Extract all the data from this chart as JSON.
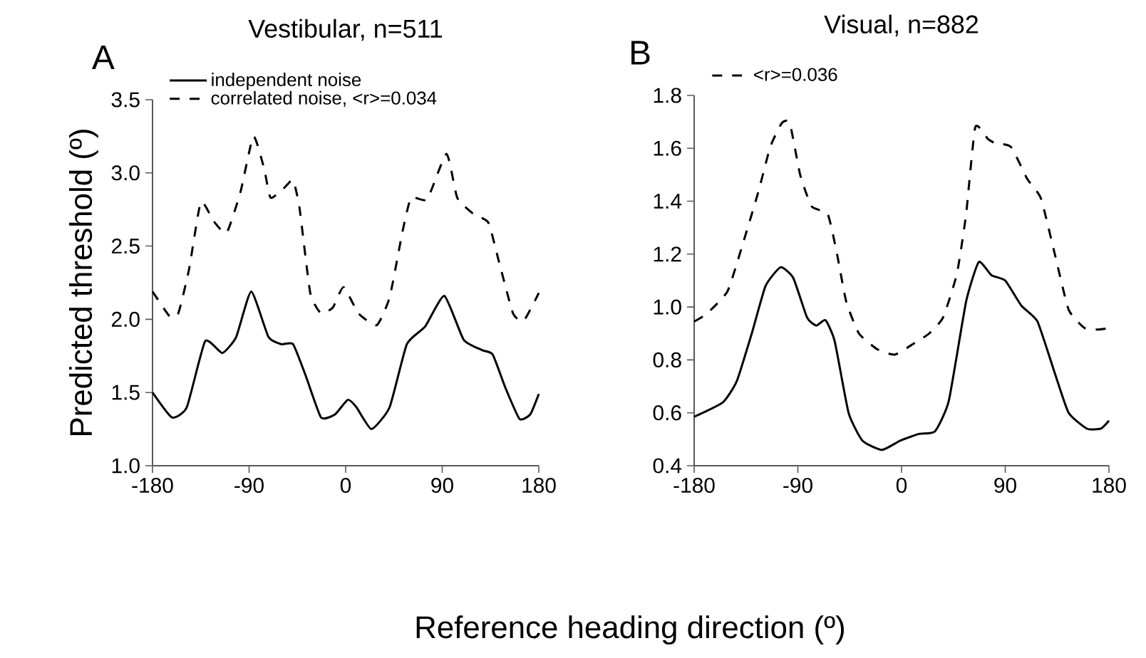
{
  "chart_data": [
    {
      "type": "line",
      "title": "Vestibular, n=511",
      "xlabel": "Reference heading direction (º)",
      "ylabel": "Predicted threshold (º)",
      "annotations": [
        "A"
      ],
      "xlim": [
        -180,
        180
      ],
      "ylim": [
        1.0,
        3.5
      ],
      "xticks": [
        -180,
        -90,
        0,
        90,
        180
      ],
      "yticks": [
        {
          "value": 1.0,
          "label": "1.0"
        },
        {
          "value": 1.5,
          "label": "1.5"
        },
        {
          "value": 2.0,
          "label": "2.0"
        },
        {
          "value": 2.5,
          "label": "2.5"
        },
        {
          "value": 3.0,
          "label": "3.0"
        },
        {
          "value": 3.5,
          "label": "3.5"
        }
      ],
      "legend": "top left",
      "series": [
        {
          "name": "independent noise",
          "color": "#000000",
          "line_style": "solid",
          "x": [
            -180,
            -162,
            -148,
            -131,
            -115,
            -102,
            -88,
            -72,
            -60,
            -49,
            -37,
            -23,
            -10,
            2,
            10,
            24,
            41,
            57,
            74,
            92,
            110,
            127,
            137,
            149,
            162,
            172,
            180
          ],
          "values": [
            1.5,
            1.33,
            1.4,
            1.85,
            1.77,
            1.88,
            2.19,
            1.88,
            1.83,
            1.83,
            1.61,
            1.33,
            1.35,
            1.45,
            1.4,
            1.25,
            1.4,
            1.83,
            1.95,
            2.16,
            1.86,
            1.79,
            1.76,
            1.53,
            1.32,
            1.35,
            1.49
          ]
        },
        {
          "name": "correlated noise, <r>=0.034",
          "color": "#000000",
          "line_style": "dashed",
          "x": [
            -180,
            -164,
            -156,
            -146,
            -135,
            -123,
            -111,
            -98,
            -86,
            -76,
            -70,
            -57,
            -49,
            -43,
            -33,
            -23,
            -12,
            -2,
            12,
            29,
            41,
            53,
            61,
            76,
            94,
            104,
            119,
            133,
            143,
            156,
            166,
            180
          ],
          "values": [
            2.19,
            2.02,
            2.04,
            2.34,
            2.8,
            2.67,
            2.59,
            2.87,
            3.25,
            3.03,
            2.83,
            2.9,
            2.95,
            2.76,
            2.18,
            2.04,
            2.08,
            2.22,
            2.04,
            1.96,
            2.15,
            2.6,
            2.83,
            2.82,
            3.13,
            2.83,
            2.72,
            2.66,
            2.39,
            2.04,
            1.99,
            2.18
          ]
        }
      ]
    },
    {
      "type": "line",
      "title": "Visual, n=882",
      "annotations": [
        "B"
      ],
      "xlim": [
        -180,
        180
      ],
      "ylim": [
        0.4,
        1.8
      ],
      "xticks": [
        -180,
        -90,
        0,
        90,
        180
      ],
      "yticks": [
        {
          "value": 0.4,
          "label": "0.4"
        },
        {
          "value": 0.6,
          "label": "0.6"
        },
        {
          "value": 0.8,
          "label": "0.8"
        },
        {
          "value": 1.0,
          "label": "1.0"
        },
        {
          "value": 1.2,
          "label": "1.2"
        },
        {
          "value": 1.4,
          "label": "1.4"
        },
        {
          "value": 1.6,
          "label": "1.6"
        },
        {
          "value": 1.8,
          "label": "1.8"
        }
      ],
      "legend": "top left",
      "series": [
        {
          "color": "#000000",
          "line_style": "solid",
          "x": [
            -180,
            -155,
            -143,
            -130,
            -118,
            -105,
            -94,
            -82,
            -74,
            -66,
            -58,
            -46,
            -34,
            -17,
            -1,
            15,
            29,
            41,
            56,
            67,
            78,
            90,
            104,
            118,
            133,
            145,
            161,
            173,
            180
          ],
          "values": [
            0.585,
            0.64,
            0.72,
            0.9,
            1.08,
            1.15,
            1.11,
            0.96,
            0.93,
            0.95,
            0.87,
            0.6,
            0.495,
            0.46,
            0.495,
            0.52,
            0.53,
            0.645,
            1.02,
            1.17,
            1.12,
            1.1,
            1.005,
            0.945,
            0.75,
            0.6,
            0.54,
            0.54,
            0.57
          ]
        },
        {
          "name": "<r>=0.036",
          "color": "#000000",
          "line_style": "dashed",
          "x": [
            -180,
            -169,
            -151,
            -137,
            -124,
            -114,
            -104,
            -97,
            -88,
            -78,
            -64,
            -56,
            -48,
            -37,
            -21,
            -6,
            10,
            24,
            36,
            48,
            56,
            64,
            75,
            81,
            95,
            109,
            121,
            133,
            145,
            159,
            171,
            180
          ],
          "values": [
            0.945,
            0.975,
            1.06,
            1.25,
            1.44,
            1.605,
            1.695,
            1.695,
            1.5,
            1.38,
            1.35,
            1.2,
            1.02,
            0.9,
            0.84,
            0.82,
            0.86,
            0.9,
            0.96,
            1.125,
            1.35,
            1.68,
            1.635,
            1.62,
            1.605,
            1.485,
            1.41,
            1.2,
            0.99,
            0.92,
            0.915,
            0.92
          ]
        }
      ]
    }
  ]
}
